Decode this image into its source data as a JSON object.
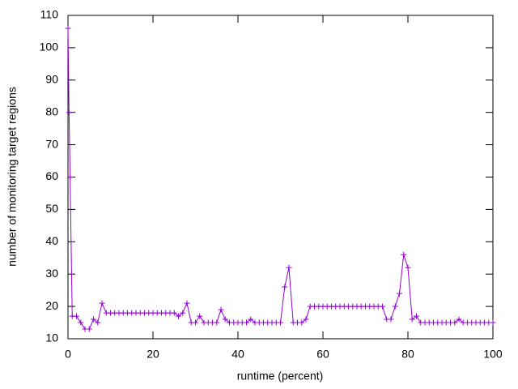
{
  "chart_data": {
    "type": "line",
    "xlabel": "runtime (percent)",
    "ylabel": "number of monitoring target regions",
    "x": [
      0,
      0.25,
      0.5,
      1,
      2,
      3,
      4,
      5,
      6,
      7,
      8,
      9,
      10,
      11,
      12,
      13,
      14,
      15,
      16,
      17,
      18,
      19,
      20,
      21,
      22,
      23,
      24,
      25,
      26,
      27,
      28,
      29,
      30,
      31,
      32,
      33,
      34,
      35,
      36,
      37,
      38,
      39,
      40,
      41,
      42,
      43,
      44,
      45,
      46,
      47,
      48,
      49,
      50,
      51,
      52,
      53,
      54,
      55,
      56,
      57,
      58,
      59,
      60,
      61,
      62,
      63,
      64,
      65,
      66,
      67,
      68,
      69,
      70,
      71,
      72,
      73,
      74,
      75,
      76,
      77,
      78,
      79,
      80,
      81,
      82,
      83,
      84,
      85,
      86,
      87,
      88,
      89,
      90,
      91,
      92,
      93,
      94,
      95,
      96,
      97,
      98,
      99,
      100
    ],
    "series": [
      {
        "color": "#9400d3",
        "values": [
          106,
          80,
          60,
          17,
          17,
          15,
          13,
          13,
          16,
          15,
          21,
          18,
          18,
          18,
          18,
          18,
          18,
          18,
          18,
          18,
          18,
          18,
          18,
          18,
          18,
          18,
          18,
          18,
          17,
          18,
          21,
          15,
          15,
          17,
          15,
          15,
          15,
          15,
          19,
          16,
          15,
          15,
          15,
          15,
          15,
          16,
          15,
          15,
          15,
          15,
          15,
          15,
          15,
          26,
          32,
          15,
          15,
          15,
          16,
          20,
          20,
          20,
          20,
          20,
          20,
          20,
          20,
          20,
          20,
          20,
          20,
          20,
          20,
          20,
          20,
          20,
          20,
          16,
          16,
          20,
          24,
          36,
          32,
          16,
          17,
          15,
          15,
          15,
          15,
          15,
          15,
          15,
          15,
          15,
          16,
          15,
          15,
          15,
          15,
          15,
          15,
          15,
          15
        ]
      }
    ],
    "xlim": [
      0,
      100
    ],
    "xticks": [
      0,
      20,
      40,
      60,
      80,
      100
    ],
    "ylim": [
      10,
      110
    ],
    "yticks": [
      10,
      20,
      30,
      40,
      50,
      60,
      70,
      80,
      90,
      100,
      110
    ]
  }
}
